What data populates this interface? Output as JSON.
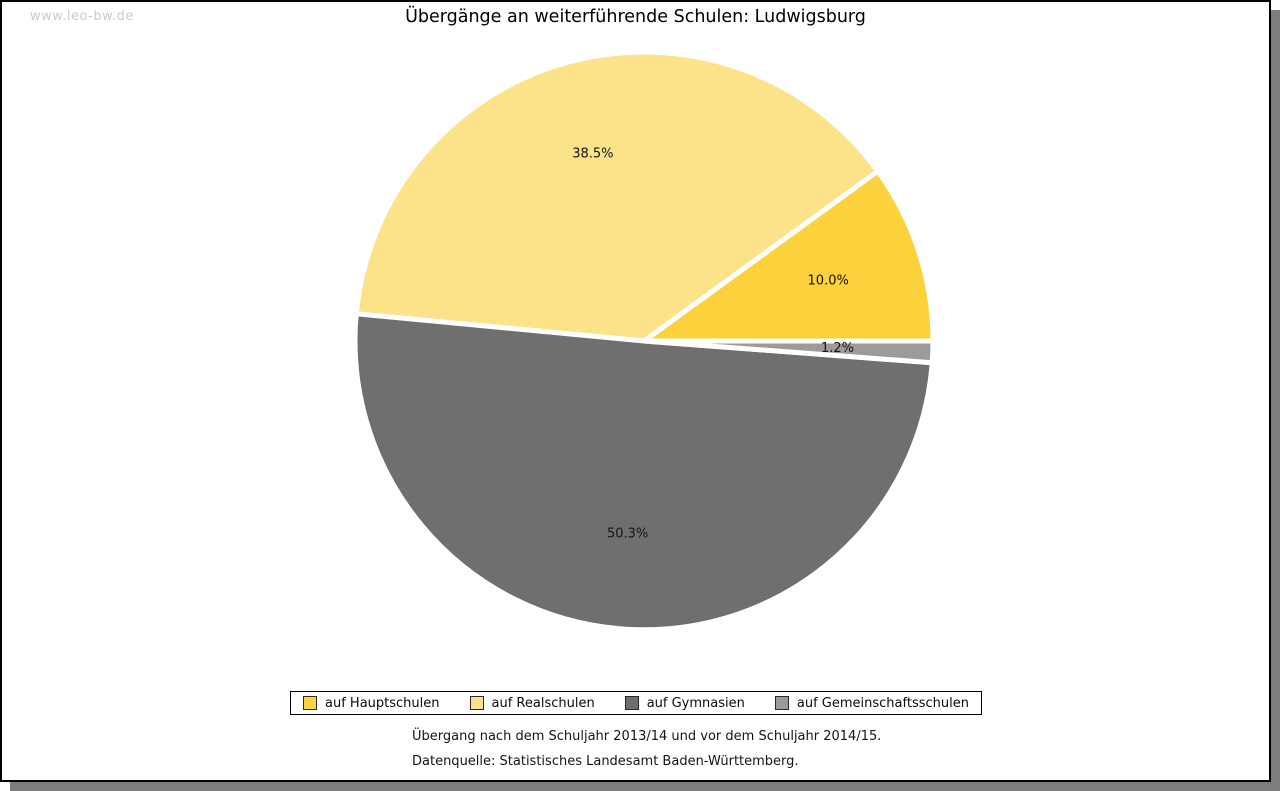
{
  "page": {
    "watermark": "www.leo-bw.de",
    "title": "Übergänge an weiterführende Schulen: Ludwigsburg"
  },
  "chart_data": {
    "type": "pie",
    "title": "Übergänge an weiterführende Schulen: Ludwigsburg",
    "unit": "percent",
    "slices": [
      {
        "label": "auf Hauptschulen",
        "value": 10.0,
        "display": "10.0%",
        "color": "#fbd23c"
      },
      {
        "label": "auf Realschulen",
        "value": 38.5,
        "display": "38.5%",
        "color": "#fce289"
      },
      {
        "label": "auf Gymnasien",
        "value": 50.3,
        "display": "50.3%",
        "color": "#6f6f6f"
      },
      {
        "label": "auf Gemeinschaftsschulen",
        "value": 1.2,
        "display": "1.2%",
        "color": "#9b9b9b"
      }
    ],
    "start_angle_deg": 0,
    "direction": "counterclockwise",
    "separator_color": "#ffffff",
    "label_color": "#141414",
    "legend_position": "bottom"
  },
  "footnotes": {
    "line1": "Übergang nach dem Schuljahr 2013/14 und vor dem Schuljahr 2014/15.",
    "line2": "Datenquelle: Statistisches Landesamt Baden-Württemberg."
  }
}
